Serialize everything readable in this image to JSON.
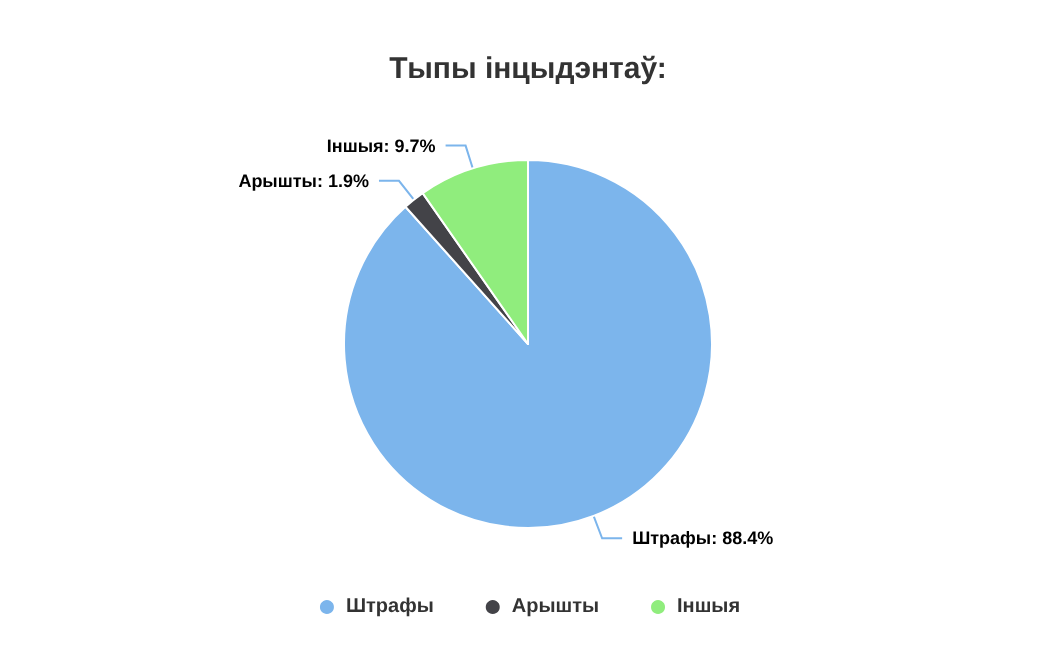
{
  "chart_data": {
    "type": "pie",
    "title": "Тыпы інцыдэнтаў:",
    "categories": [
      "Штрафы",
      "Арышты",
      "Іншыя"
    ],
    "values": [
      88.4,
      1.9,
      9.7
    ],
    "colors": [
      "#7cb5ec",
      "#434348",
      "#90ed7d"
    ],
    "value_labels": [
      "Штрафы: 88.4%",
      "Арышты: 1.9%",
      "Іншыя: 9.7%"
    ],
    "legend": "bottom"
  }
}
